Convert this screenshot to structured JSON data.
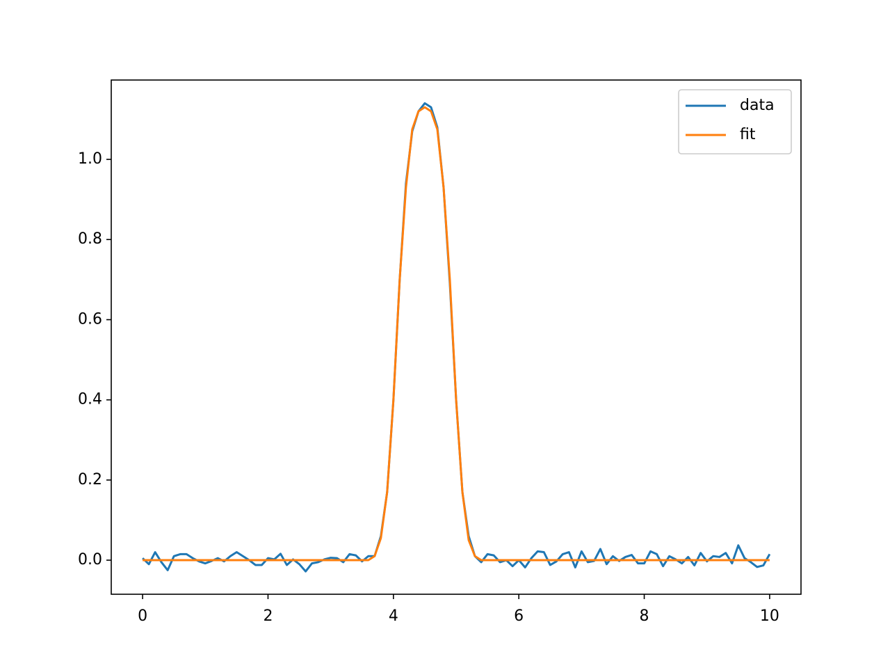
{
  "chart_data": {
    "type": "line",
    "x": [
      0,
      0.1,
      0.2,
      0.3,
      0.4,
      0.5,
      0.6,
      0.7,
      0.8,
      0.9,
      1,
      1.1,
      1.2,
      1.3,
      1.4,
      1.5,
      1.6,
      1.7,
      1.8,
      1.9,
      2,
      2.1,
      2.2,
      2.3,
      2.4,
      2.5,
      2.6,
      2.7,
      2.8,
      2.9,
      3,
      3.1,
      3.2,
      3.3,
      3.4,
      3.5,
      3.6,
      3.7,
      3.8,
      3.9,
      4,
      4.1,
      4.2,
      4.3,
      4.4,
      4.5,
      4.6,
      4.7,
      4.8,
      4.9,
      5,
      5.1,
      5.2,
      5.3,
      5.4,
      5.5,
      5.6,
      5.7,
      5.8,
      5.9,
      6,
      6.1,
      6.2,
      6.3,
      6.4,
      6.5,
      6.6,
      6.7,
      6.8,
      6.9,
      7,
      7.1,
      7.2,
      7.3,
      7.4,
      7.5,
      7.6,
      7.7,
      7.8,
      7.9,
      8,
      8.1,
      8.2,
      8.3,
      8.4,
      8.5,
      8.6,
      8.7,
      8.8,
      8.9,
      9,
      9.1,
      9.2,
      9.3,
      9.4,
      9.5,
      9.6,
      9.7,
      9.8,
      9.9,
      10
    ],
    "series": [
      {
        "name": "data",
        "color": "#1f77b4",
        "values": [
          0.005,
          -0.01,
          0.02,
          -0.005,
          -0.025,
          0.01,
          0.015,
          0.015,
          0.005,
          -0.003,
          -0.008,
          -0.002,
          0.005,
          -0.003,
          0.01,
          0.02,
          0.01,
          0.0,
          -0.012,
          -0.012,
          0.005,
          0.002,
          0.016,
          -0.012,
          0.002,
          -0.01,
          -0.028,
          -0.008,
          -0.005,
          0.002,
          0.006,
          0.005,
          -0.005,
          0.015,
          0.012,
          -0.003,
          0.01,
          0.01,
          0.06,
          0.17,
          0.4,
          0.7,
          0.94,
          1.07,
          1.12,
          1.14,
          1.13,
          1.08,
          0.93,
          0.69,
          0.4,
          0.17,
          0.06,
          0.01,
          -0.005,
          0.015,
          0.012,
          -0.005,
          0.0,
          -0.015,
          0.0,
          -0.018,
          0.005,
          0.022,
          0.02,
          -0.012,
          -0.003,
          0.015,
          0.02,
          -0.018,
          0.022,
          -0.005,
          -0.002,
          0.028,
          -0.01,
          0.01,
          -0.002,
          0.008,
          0.013,
          -0.008,
          -0.008,
          0.022,
          0.015,
          -0.015,
          0.01,
          0.002,
          -0.008,
          0.008,
          -0.013,
          0.018,
          -0.003,
          0.01,
          0.008,
          0.018,
          -0.008,
          0.037,
          0.005,
          -0.005,
          -0.017,
          -0.013,
          0.015
        ]
      },
      {
        "name": "fit",
        "color": "#ff7f0e",
        "values": [
          0,
          0,
          0,
          0,
          0,
          0,
          0,
          0,
          0,
          0,
          0,
          0,
          0,
          0,
          0,
          0,
          0,
          0,
          0,
          0,
          0,
          0,
          0,
          0,
          0,
          0,
          0,
          0,
          0,
          0,
          0,
          0,
          0,
          0,
          0,
          0,
          0,
          0.01,
          0.055,
          0.17,
          0.4,
          0.7,
          0.93,
          1.075,
          1.12,
          1.13,
          1.12,
          1.075,
          0.93,
          0.7,
          0.4,
          0.17,
          0.05,
          0.01,
          0,
          0,
          0,
          0,
          0,
          0,
          0,
          0,
          0,
          0,
          0,
          0,
          0,
          0,
          0,
          0,
          0,
          0,
          0,
          0,
          0,
          0,
          0,
          0,
          0,
          0,
          0,
          0,
          0,
          0,
          0,
          0,
          0,
          0,
          0,
          0,
          0,
          0,
          0,
          0,
          0,
          0,
          0,
          0,
          0,
          0,
          0
        ]
      }
    ],
    "xlim": [
      -0.5,
      10.5
    ],
    "ylim": [
      -0.085,
      1.198
    ],
    "xticks": [
      0,
      2,
      4,
      6,
      8,
      10
    ],
    "yticks": [
      {
        "value": 0,
        "label": "0.0"
      },
      0.2,
      0.4,
      0.6,
      0.8,
      {
        "value": 1,
        "label": "1.0"
      }
    ],
    "legend": "upper right"
  }
}
